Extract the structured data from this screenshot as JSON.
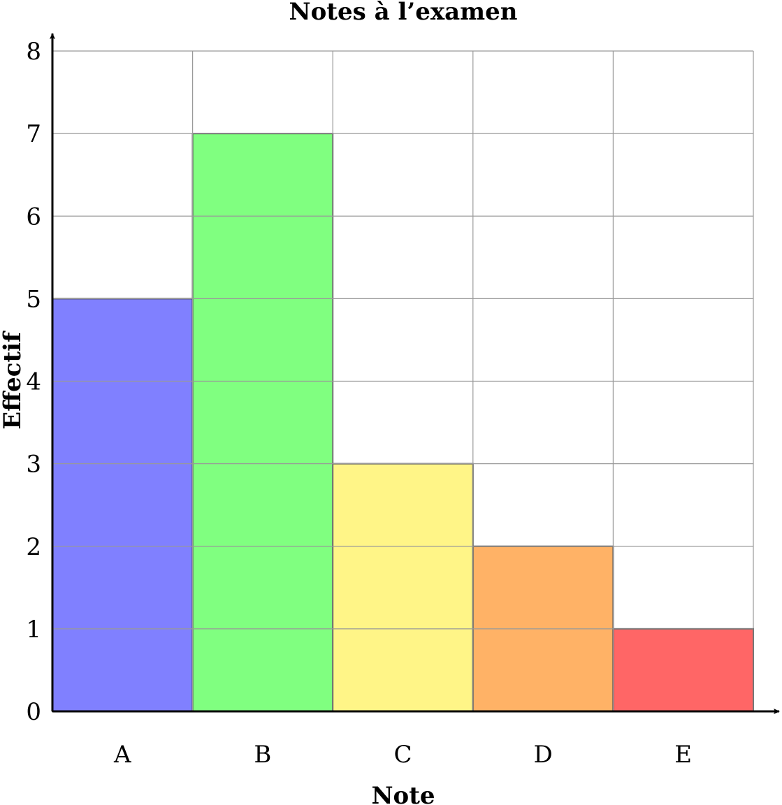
{
  "chart_data": {
    "type": "bar",
    "title": "Notes à l’examen",
    "xlabel": "Note",
    "ylabel": "Effectif",
    "categories": [
      "A",
      "B",
      "C",
      "D",
      "E"
    ],
    "values": [
      5,
      7,
      3,
      2,
      1
    ],
    "colors": [
      "#8080ff",
      "#80ff80",
      "#fff587",
      "#ffb266",
      "#ff6666"
    ],
    "ylim": [
      0,
      8
    ],
    "yticks": [
      "0",
      "1",
      "2",
      "3",
      "4",
      "5",
      "6",
      "7",
      "8"
    ],
    "grid": true,
    "bar_edge_color": "#444444",
    "grid_color": "#999999"
  }
}
